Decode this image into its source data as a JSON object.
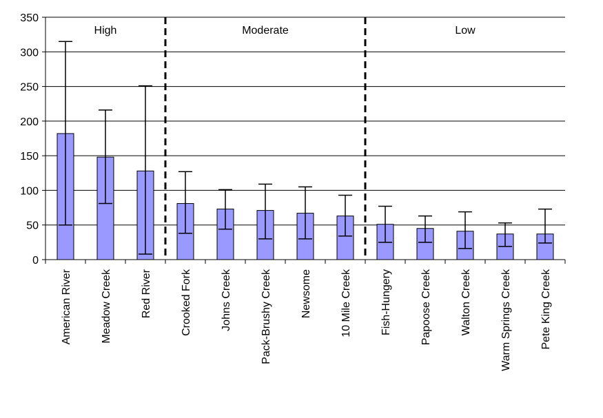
{
  "chart_data": {
    "type": "bar",
    "title": "",
    "xlabel": "",
    "ylabel": "",
    "ylim": [
      0,
      350
    ],
    "yticks": [
      0,
      50,
      100,
      150,
      200,
      250,
      300,
      350
    ],
    "grid": true,
    "categories": [
      "American River",
      "Meadow Creek",
      "Red River",
      "Crooked Fork",
      "Johns Creek",
      "Pack-Brushy Creek",
      "Newsome",
      "10 Mile Creek",
      "Fish-Hungery",
      "Papoose Creek",
      "Walton Creek",
      "Warm Springs Creek",
      "Pete King Creek"
    ],
    "values": [
      182,
      148,
      128,
      81,
      73,
      71,
      67,
      63,
      51,
      45,
      41,
      37,
      37
    ],
    "error_low": [
      50,
      81,
      8,
      38,
      44,
      30,
      30,
      34,
      25,
      25,
      16,
      19,
      24
    ],
    "error_high": [
      315,
      216,
      251,
      127,
      101,
      109,
      105,
      93,
      77,
      63,
      69,
      53,
      73
    ],
    "groups": [
      {
        "label": "High",
        "start": 0,
        "end": 2
      },
      {
        "label": "Moderate",
        "start": 3,
        "end": 7
      },
      {
        "label": "Low",
        "start": 8,
        "end": 12
      }
    ],
    "bar_color": "#9999ff"
  }
}
